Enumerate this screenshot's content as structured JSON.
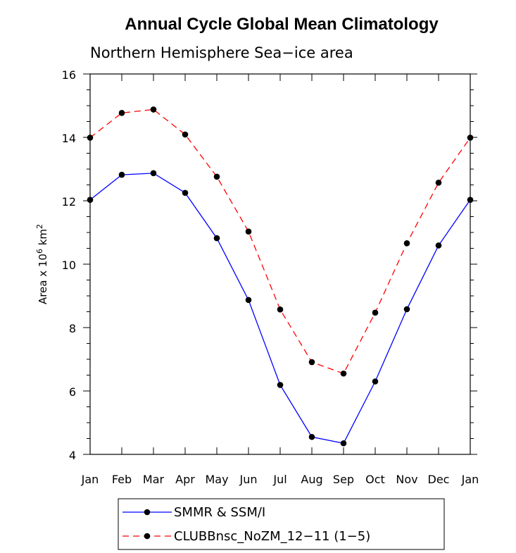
{
  "chart_data": {
    "type": "line",
    "title": "Annual Cycle Global Mean Climatology",
    "subtitle": "Northern Hemisphere Sea−ice area",
    "ylabel_prefix": "Area x 10",
    "ylabel_exp1": "6",
    "ylabel_mid": " km",
    "ylabel_exp2": "2",
    "categories": [
      "Jan",
      "Feb",
      "Mar",
      "Apr",
      "May",
      "Jun",
      "Jul",
      "Aug",
      "Sep",
      "Oct",
      "Nov",
      "Dec",
      "Jan"
    ],
    "ylim": [
      4,
      16
    ],
    "yticks": [
      4,
      6,
      8,
      10,
      12,
      14,
      16
    ],
    "series": [
      {
        "name": "SMMR & SSM/I",
        "color": "#0000ff",
        "dash": "solid",
        "values": [
          12.03,
          12.82,
          12.87,
          12.25,
          10.82,
          8.87,
          6.19,
          4.55,
          4.35,
          6.3,
          8.58,
          10.59,
          12.03
        ]
      },
      {
        "name": "CLUBBnsc_NoZM_12−11 (1−5)",
        "color": "#ff0000",
        "dash": "dashed",
        "values": [
          13.99,
          14.77,
          14.88,
          14.09,
          12.76,
          11.03,
          8.57,
          6.91,
          6.55,
          8.47,
          10.66,
          12.57,
          13.99
        ]
      }
    ],
    "legend_position": "bottom-center",
    "marker_color": "#000000"
  }
}
